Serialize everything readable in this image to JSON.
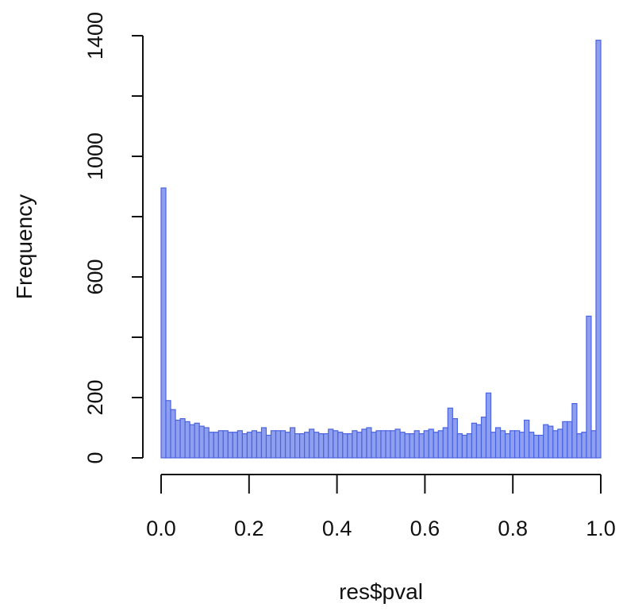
{
  "chart_data": {
    "type": "bar",
    "title": "",
    "xlabel": "res$pval",
    "ylabel": "Frequency",
    "xlim": [
      0,
      1
    ],
    "ylim": [
      0,
      1400
    ],
    "bin_width": 0.01,
    "x_ticks": [
      "0.0",
      "0.2",
      "0.4",
      "0.6",
      "0.8",
      "1.0"
    ],
    "y_ticks": [
      "0",
      "200",
      "600",
      "1000",
      "1400"
    ],
    "grid": false,
    "bar_fill": "#8f9ff0",
    "bar_stroke": "#4a63e0",
    "values": [
      895,
      190,
      160,
      125,
      130,
      120,
      110,
      115,
      105,
      100,
      85,
      85,
      90,
      90,
      85,
      85,
      90,
      80,
      85,
      90,
      85,
      100,
      75,
      90,
      90,
      90,
      85,
      100,
      80,
      80,
      85,
      95,
      85,
      80,
      80,
      95,
      90,
      85,
      80,
      80,
      90,
      85,
      95,
      100,
      85,
      90,
      90,
      90,
      90,
      95,
      85,
      80,
      80,
      90,
      80,
      90,
      95,
      85,
      90,
      100,
      165,
      130,
      80,
      75,
      80,
      115,
      110,
      135,
      215,
      85,
      100,
      90,
      80,
      90,
      90,
      85,
      125,
      85,
      75,
      75,
      110,
      105,
      90,
      95,
      120,
      120,
      180,
      80,
      85,
      470,
      90,
      1385
    ]
  }
}
